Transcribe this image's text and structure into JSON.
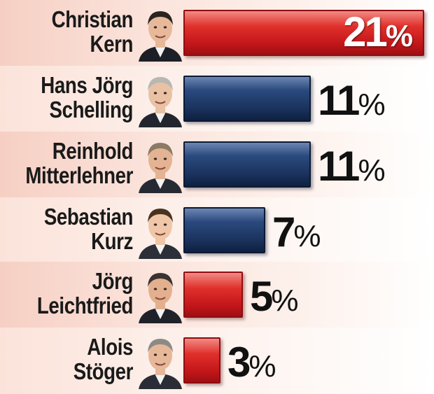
{
  "chart_data": {
    "type": "bar",
    "orientation": "horizontal",
    "xlim": [
      0,
      21
    ],
    "value_suffix": "%",
    "categories": [
      [
        "Christian",
        "Kern"
      ],
      [
        "Hans Jörg",
        "Schelling"
      ],
      [
        "Reinhold",
        "Mitterlehner"
      ],
      [
        "Sebastian",
        "Kurz"
      ],
      [
        "Jörg",
        "Leichtfried"
      ],
      [
        "Alois",
        "Stöger"
      ]
    ],
    "values": [
      21,
      11,
      11,
      7,
      5,
      3
    ],
    "bar_colors": [
      "#d42320",
      "#1f3a6a",
      "#1f3a6a",
      "#1f3a6a",
      "#d42320",
      "#d42320"
    ],
    "portraits": [
      "portrait-icon",
      "portrait-icon",
      "portrait-icon",
      "portrait-icon",
      "portrait-icon",
      "portrait-icon"
    ],
    "colors": {
      "red": "#d42320",
      "blue": "#1f3a6a"
    }
  }
}
